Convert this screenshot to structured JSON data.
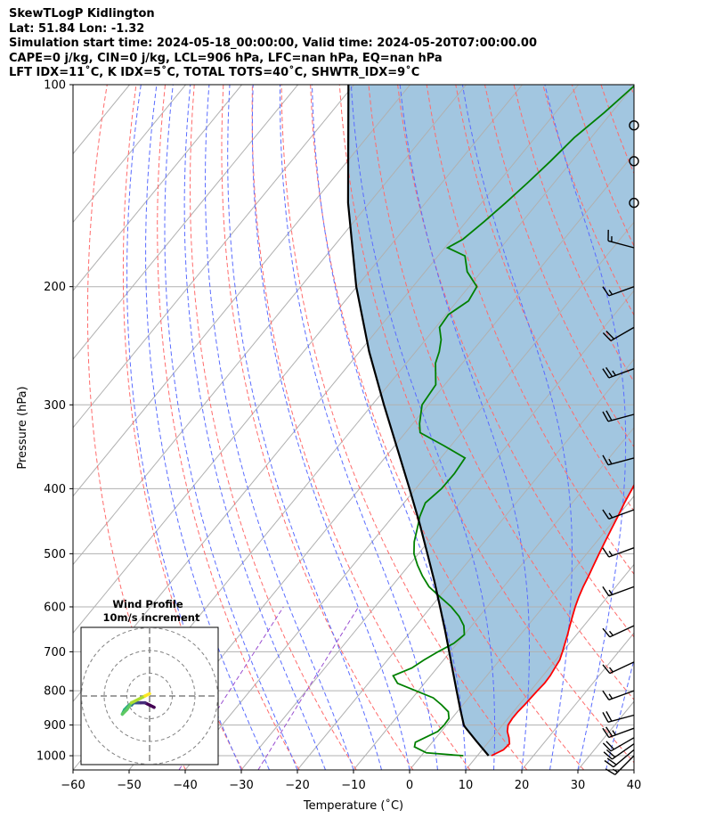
{
  "header": {
    "line1": "SkewTLogP Kidlington",
    "line2": "Lat: 51.84   Lon: -1.32",
    "line3": "Simulation start time: 2024-05-18_00:00:00, Valid time: 2024-05-20T07:00:00.00",
    "line4": "CAPE=0 j/kg, CIN=0 j/kg, LCL=906 hPa, LFC=nan hPa, EQ=nan hPa",
    "line5": "LFT IDX=11˚C, K IDX=5˚C, TOTAL TOTS=40˚C, SHWTR_IDX=9˚C"
  },
  "chart_data": {
    "type": "skewt-logp",
    "xlabel": "Temperature (˚C)",
    "ylabel": "Pressure (hPa)",
    "xlim": [
      -60,
      40
    ],
    "ylim": [
      1050,
      100
    ],
    "x_ticks": [
      -60,
      -50,
      -40,
      -30,
      -20,
      -10,
      0,
      10,
      20,
      30,
      40
    ],
    "x_tick_labels": [
      "−60",
      "−50",
      "−40",
      "−30",
      "−20",
      "−10",
      "0",
      "10",
      "20",
      "30",
      "40"
    ],
    "y_ticks": [
      1000,
      900,
      800,
      700,
      600,
      500,
      400,
      300,
      200,
      100
    ],
    "grid": true,
    "colors": {
      "temperature": "#ff0000",
      "dewpoint": "#008000",
      "parcel": "#000000",
      "shade": "#a2c6e0",
      "dry_adiabat": "#ff6b6b",
      "moist_adiabat": "#5a6cff",
      "mixing_ratio": "#9a4fd0",
      "isotherm": "#b0b0b0"
    },
    "series": [
      {
        "name": "",
        "role": "temperature",
        "points": [
          [
            1000,
            12.5
          ],
          [
            980,
            13.8
          ],
          [
            960,
            14.0
          ],
          [
            940,
            13.0
          ],
          [
            920,
            11.8
          ],
          [
            900,
            11.0
          ],
          [
            880,
            10.8
          ],
          [
            860,
            10.8
          ],
          [
            840,
            11.0
          ],
          [
            820,
            11.1
          ],
          [
            800,
            11.2
          ],
          [
            780,
            11.4
          ],
          [
            760,
            11.3
          ],
          [
            740,
            11.0
          ],
          [
            720,
            10.7
          ],
          [
            700,
            10.0
          ],
          [
            680,
            9.2
          ],
          [
            660,
            8.4
          ],
          [
            640,
            7.5
          ],
          [
            620,
            6.6
          ],
          [
            600,
            5.7
          ],
          [
            580,
            4.9
          ],
          [
            560,
            4.2
          ],
          [
            540,
            3.6
          ],
          [
            520,
            2.9
          ],
          [
            500,
            2.2
          ],
          [
            480,
            1.5
          ],
          [
            460,
            0.8
          ],
          [
            440,
            0.1
          ],
          [
            420,
            -0.7
          ],
          [
            400,
            -1.4
          ],
          [
            380,
            -2.2
          ],
          [
            360,
            -3.0
          ],
          [
            340,
            -4.4
          ],
          [
            320,
            -6.2
          ],
          [
            300,
            -8.2
          ],
          [
            280,
            -10.6
          ],
          [
            260,
            -13.1
          ],
          [
            250,
            -14.8
          ],
          [
            240,
            -16.5
          ],
          [
            230,
            -18.3
          ],
          [
            220,
            -19.6
          ],
          [
            210,
            -20.3
          ],
          [
            200,
            -20.6
          ],
          [
            190,
            -20.9
          ],
          [
            180,
            -20.2
          ],
          [
            170,
            -20.6
          ],
          [
            160,
            -21.0
          ],
          [
            150,
            -21.5
          ],
          [
            140,
            -22.3
          ],
          [
            130,
            -23.5
          ],
          [
            120,
            -24.6
          ],
          [
            110,
            -26.3
          ],
          [
            100,
            -28.5
          ]
        ]
      },
      {
        "name": "",
        "role": "dewpoint",
        "points": [
          [
            1000,
            7.5
          ],
          [
            998,
            6.0
          ],
          [
            995,
            4.0
          ],
          [
            990,
            0.5
          ],
          [
            970,
            -2.5
          ],
          [
            955,
            -3.0
          ],
          [
            940,
            -2.0
          ],
          [
            920,
            -0.6
          ],
          [
            900,
            -0.4
          ],
          [
            880,
            -0.5
          ],
          [
            860,
            -1.6
          ],
          [
            840,
            -3.8
          ],
          [
            820,
            -6.3
          ],
          [
            800,
            -10.5
          ],
          [
            780,
            -14.8
          ],
          [
            760,
            -16.7
          ],
          [
            740,
            -14.5
          ],
          [
            720,
            -13.5
          ],
          [
            700,
            -12.2
          ],
          [
            680,
            -10.6
          ],
          [
            660,
            -10.0
          ],
          [
            640,
            -11.4
          ],
          [
            620,
            -13.6
          ],
          [
            600,
            -16.4
          ],
          [
            580,
            -19.8
          ],
          [
            560,
            -23.3
          ],
          [
            540,
            -26.0
          ],
          [
            520,
            -28.5
          ],
          [
            500,
            -30.8
          ],
          [
            480,
            -32.5
          ],
          [
            460,
            -33.8
          ],
          [
            440,
            -35.2
          ],
          [
            420,
            -36.2
          ],
          [
            400,
            -35.4
          ],
          [
            380,
            -35.3
          ],
          [
            360,
            -35.7
          ],
          [
            345,
            -41.3
          ],
          [
            330,
            -47.4
          ],
          [
            320,
            -48.8
          ],
          [
            300,
            -51.1
          ],
          [
            280,
            -51.6
          ],
          [
            260,
            -54.8
          ],
          [
            250,
            -55.8
          ],
          [
            240,
            -57.2
          ],
          [
            230,
            -59.3
          ],
          [
            220,
            -59.6
          ],
          [
            210,
            -58.0
          ],
          [
            200,
            -58.6
          ],
          [
            190,
            -62.5
          ],
          [
            180,
            -65.2
          ],
          [
            175,
            -69.5
          ],
          [
            170,
            -68.0
          ],
          [
            160,
            -66.8
          ],
          [
            150,
            -65.7
          ],
          [
            140,
            -64.7
          ],
          [
            130,
            -63.8
          ],
          [
            120,
            -63.0
          ],
          [
            110,
            -61.3
          ],
          [
            100,
            -59.8
          ]
        ]
      },
      {
        "name": "",
        "role": "parcel",
        "points": [
          [
            1000,
            12.0
          ],
          [
            950,
            7.6
          ],
          [
            906,
            3.6
          ],
          [
            900,
            3.1
          ],
          [
            850,
            0.0
          ],
          [
            800,
            -3.2
          ],
          [
            750,
            -6.6
          ],
          [
            700,
            -10.2
          ],
          [
            650,
            -14.1
          ],
          [
            600,
            -18.4
          ],
          [
            550,
            -23.1
          ],
          [
            500,
            -28.4
          ],
          [
            450,
            -34.3
          ],
          [
            400,
            -41.1
          ],
          [
            350,
            -48.9
          ],
          [
            300,
            -57.9
          ],
          [
            250,
            -68.3
          ],
          [
            200,
            -80.1
          ],
          [
            150,
            -93.8
          ],
          [
            100,
            -111.0
          ]
        ]
      }
    ],
    "wind_barbs": [
      {
        "p": 1000,
        "speed_kt": 15,
        "dir_deg": 225
      },
      {
        "p": 980,
        "speed_kt": 20,
        "dir_deg": 230
      },
      {
        "p": 960,
        "speed_kt": 20,
        "dir_deg": 235
      },
      {
        "p": 940,
        "speed_kt": 20,
        "dir_deg": 240
      },
      {
        "p": 910,
        "speed_kt": 25,
        "dir_deg": 250
      },
      {
        "p": 870,
        "speed_kt": 20,
        "dir_deg": 255
      },
      {
        "p": 800,
        "speed_kt": 15,
        "dir_deg": 250
      },
      {
        "p": 725,
        "speed_kt": 15,
        "dir_deg": 245
      },
      {
        "p": 640,
        "speed_kt": 15,
        "dir_deg": 245
      },
      {
        "p": 560,
        "speed_kt": 15,
        "dir_deg": 250
      },
      {
        "p": 490,
        "speed_kt": 15,
        "dir_deg": 250
      },
      {
        "p": 430,
        "speed_kt": 15,
        "dir_deg": 250
      },
      {
        "p": 360,
        "speed_kt": 15,
        "dir_deg": 255
      },
      {
        "p": 310,
        "speed_kt": 20,
        "dir_deg": 255
      },
      {
        "p": 265,
        "speed_kt": 25,
        "dir_deg": 250
      },
      {
        "p": 230,
        "speed_kt": 20,
        "dir_deg": 240
      },
      {
        "p": 200,
        "speed_kt": 15,
        "dir_deg": 250
      },
      {
        "p": 175,
        "speed_kt": 15,
        "dir_deg": 285
      },
      {
        "p": 150,
        "speed_kt": 0,
        "dir_deg": 0
      },
      {
        "p": 130,
        "speed_kt": 0,
        "dir_deg": 0
      },
      {
        "p": 115,
        "speed_kt": 0,
        "dir_deg": 0
      }
    ],
    "inset": {
      "title_line1": "Wind Profile",
      "title_line2": "10m/s increment",
      "rings_ms": [
        10,
        20,
        30
      ],
      "hodograph_uv": [
        [
          2,
          -5
        ],
        [
          0,
          -4
        ],
        [
          -2,
          -3
        ],
        [
          -4,
          -3
        ],
        [
          -5,
          -3
        ],
        [
          -6,
          -3
        ],
        [
          -7,
          -3
        ],
        [
          -8,
          -4
        ],
        [
          -9,
          -4
        ],
        [
          -10,
          -5
        ],
        [
          -11,
          -6
        ],
        [
          -12,
          -8
        ],
        [
          -10,
          -6
        ],
        [
          -8,
          -3
        ],
        [
          -4,
          -1
        ],
        [
          -2,
          0
        ],
        [
          0,
          1
        ]
      ]
    }
  }
}
